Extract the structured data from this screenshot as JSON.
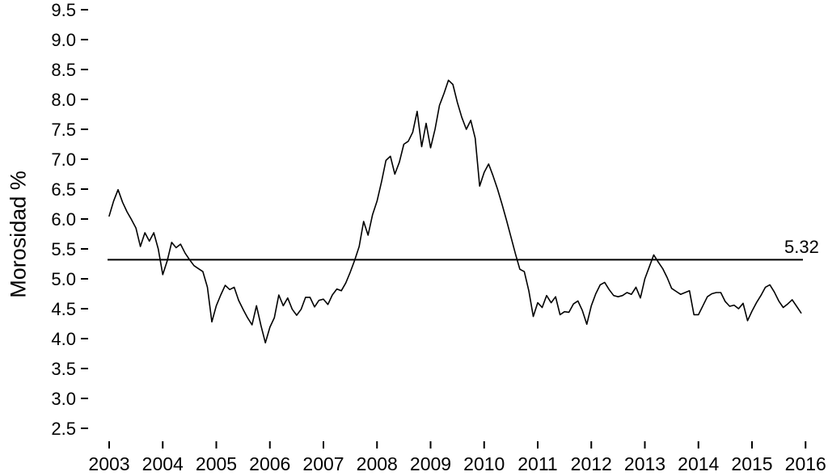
{
  "page": {
    "background": "#ffffff"
  },
  "chart_data": {
    "type": "line",
    "title": "",
    "xlabel": "",
    "ylabel": "Morosidad %",
    "grid": false,
    "legend": "none",
    "line_color": "#000000",
    "xlim": [
      2003,
      2016
    ],
    "ylim": [
      2.5,
      9.5
    ],
    "x_ticks": [
      2003,
      2004,
      2005,
      2006,
      2007,
      2008,
      2009,
      2010,
      2011,
      2012,
      2013,
      2014,
      2015,
      2016
    ],
    "y_ticks": [
      2.5,
      3.0,
      3.5,
      4.0,
      4.5,
      5.0,
      5.5,
      6.0,
      6.5,
      7.0,
      7.5,
      8.0,
      8.5,
      9.0,
      9.5
    ],
    "reference_line": {
      "value": 5.32,
      "label": "5.32"
    },
    "series": [
      {
        "name": "Morosidad %",
        "frequency": "monthly",
        "start_year": 2003,
        "values": [
          6.05,
          6.3,
          6.49,
          6.28,
          6.12,
          5.99,
          5.85,
          5.54,
          5.77,
          5.63,
          5.77,
          5.5,
          5.07,
          5.3,
          5.61,
          5.52,
          5.58,
          5.43,
          5.32,
          5.22,
          5.17,
          5.12,
          4.86,
          4.28,
          4.55,
          4.73,
          4.89,
          4.82,
          4.86,
          4.64,
          4.49,
          4.35,
          4.23,
          4.55,
          4.22,
          3.93,
          4.19,
          4.35,
          4.73,
          4.55,
          4.68,
          4.49,
          4.39,
          4.49,
          4.69,
          4.69,
          4.53,
          4.64,
          4.66,
          4.57,
          4.73,
          4.83,
          4.8,
          4.93,
          5.11,
          5.31,
          5.54,
          5.96,
          5.73,
          6.07,
          6.3,
          6.62,
          6.98,
          7.05,
          6.75,
          6.95,
          7.25,
          7.3,
          7.45,
          7.8,
          7.21,
          7.6,
          7.19,
          7.5,
          7.9,
          8.1,
          8.32,
          8.25,
          7.95,
          7.7,
          7.5,
          7.65,
          7.35,
          6.55,
          6.78,
          6.92,
          6.72,
          6.5,
          6.25,
          5.98,
          5.7,
          5.42,
          5.16,
          5.12,
          4.8,
          4.37,
          4.6,
          4.52,
          4.72,
          4.6,
          4.7,
          4.4,
          4.45,
          4.44,
          4.58,
          4.63,
          4.47,
          4.24,
          4.55,
          4.75,
          4.9,
          4.94,
          4.82,
          4.72,
          4.7,
          4.72,
          4.77,
          4.74,
          4.86,
          4.68,
          5.0,
          5.2,
          5.4,
          5.28,
          5.17,
          5.02,
          4.84,
          4.79,
          4.74,
          4.77,
          4.8,
          4.4,
          4.4,
          4.55,
          4.7,
          4.75,
          4.77,
          4.77,
          4.62,
          4.54,
          4.56,
          4.5,
          4.59,
          4.3,
          4.46,
          4.6,
          4.72,
          4.86,
          4.9,
          4.78,
          4.63,
          4.52,
          4.58,
          4.65,
          4.54,
          4.43
        ]
      }
    ]
  }
}
